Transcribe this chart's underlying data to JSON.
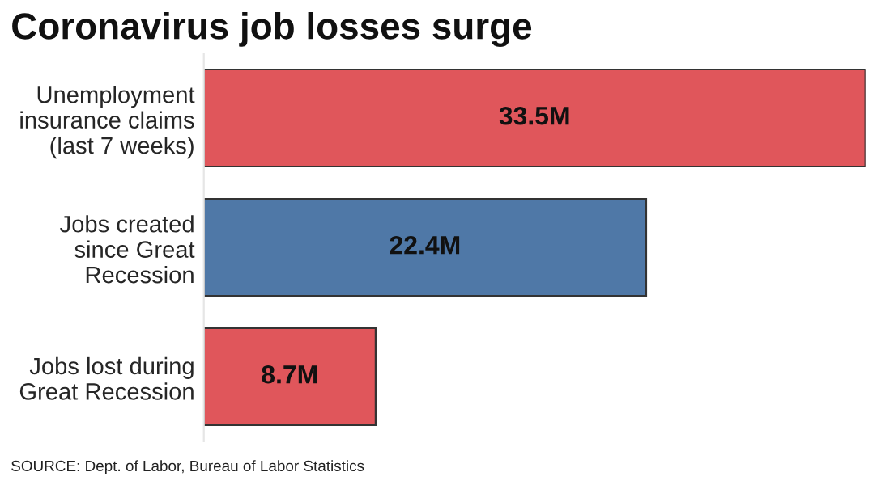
{
  "chart_data": {
    "type": "bar",
    "orientation": "horizontal",
    "title": "Coronavirus job losses surge",
    "categories": [
      "Unemployment\ninsurance claims\n(last 7 weeks)",
      "Jobs created\nsince Great\nRecession",
      "Jobs lost during\nGreat Recession"
    ],
    "values": [
      33.5,
      22.4,
      8.7
    ],
    "colors": [
      "#e0565b",
      "#4f78a7",
      "#e0565b"
    ],
    "value_labels": [
      "33.5M",
      "22.4M",
      "8.7M"
    ],
    "annotations": [
      "SOURCE: Dept. of Labor, Bureau of Labor Statistics"
    ],
    "grid": false
  }
}
